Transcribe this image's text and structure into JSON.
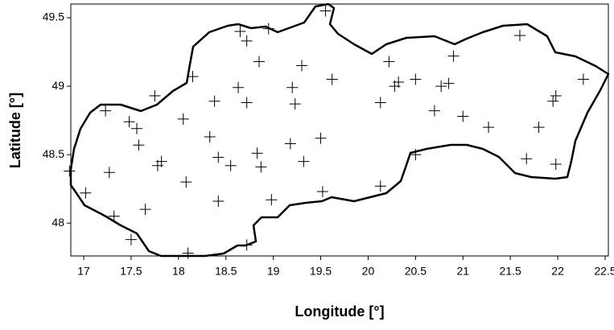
{
  "chart_data": {
    "type": "scatter",
    "xlabel": "Longitude [°]",
    "ylabel": "Latitude [°]",
    "xlim": [
      16.864,
      22.534
    ],
    "ylim": [
      47.76,
      49.6
    ],
    "xticks": [
      17,
      17.5,
      18,
      18.5,
      19,
      19.5,
      20,
      20.5,
      21,
      21.5,
      22,
      22.5
    ],
    "yticks": [
      48,
      48.5,
      49,
      49.5
    ],
    "marker": "+",
    "color": "#000000",
    "series": [
      {
        "x": [
          19.55,
          21.6,
          18.65,
          18.72,
          18.95,
          18.15,
          18.85,
          19.3,
          20.22,
          20.9,
          19.62,
          18.63,
          18.72,
          18.38,
          19.2,
          19.23,
          20.13,
          20.28,
          20.32,
          20.5,
          20.77,
          20.85,
          20.7,
          21.0,
          21.27,
          21.8,
          21.95,
          21.98,
          22.27,
          17.75,
          18.05,
          17.23,
          17.48,
          17.56,
          17.58,
          17.78,
          17.82,
          18.33,
          18.42,
          18.55,
          18.83,
          18.87,
          19.18,
          19.32,
          19.5,
          18.08,
          17.27,
          17.65,
          17.32,
          18.42,
          18.98,
          19.52,
          20.13,
          20.5,
          21.67,
          21.98,
          16.85,
          17.02,
          17.5,
          18.1,
          18.72
        ],
        "y": [
          49.55,
          49.37,
          49.4,
          49.33,
          49.42,
          49.07,
          49.18,
          49.15,
          49.18,
          49.22,
          49.05,
          48.99,
          48.88,
          48.89,
          48.99,
          48.87,
          48.88,
          49.0,
          49.03,
          49.05,
          49.0,
          49.02,
          48.82,
          48.78,
          48.7,
          48.7,
          48.89,
          48.93,
          49.05,
          48.93,
          48.76,
          48.82,
          48.74,
          48.69,
          48.57,
          48.42,
          48.45,
          48.63,
          48.48,
          48.42,
          48.51,
          48.41,
          48.58,
          48.45,
          48.62,
          48.3,
          48.37,
          48.1,
          48.05,
          48.16,
          48.17,
          48.23,
          48.27,
          48.5,
          48.47,
          48.43,
          48.38,
          48.22,
          47.88,
          47.78,
          47.84
        ]
      }
    ]
  }
}
